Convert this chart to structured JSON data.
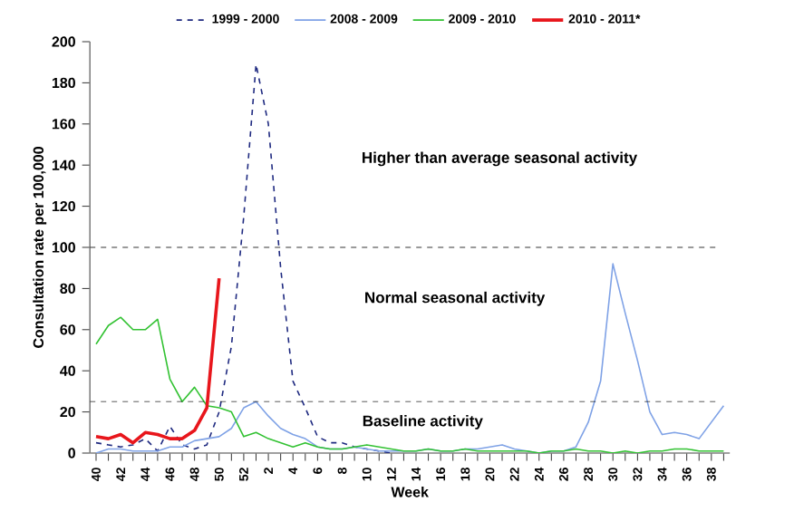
{
  "chart_data": {
    "type": "line",
    "xlabel": "Week",
    "ylabel": "Consultation rate per 100,000",
    "categories": [
      "40",
      null,
      "42",
      null,
      "44",
      null,
      "46",
      null,
      "48",
      null,
      "50",
      null,
      "52",
      null,
      "2",
      null,
      "4",
      null,
      "6",
      null,
      "8",
      null,
      "10",
      null,
      "12",
      null,
      "14",
      null,
      "16",
      null,
      "18",
      null,
      "20",
      null,
      "22",
      null,
      "24",
      null,
      "26",
      null,
      "28",
      null,
      "30",
      null,
      "32",
      null,
      "34",
      null,
      "36",
      null,
      "38",
      null
    ],
    "series": [
      {
        "name": "1999 - 2000",
        "color": "#1f2a80",
        "line_style": "dashed",
        "values": [
          5,
          4,
          3,
          4,
          7,
          1,
          13,
          4,
          2,
          4,
          20,
          52,
          115,
          189,
          160,
          90,
          35,
          22,
          8,
          5,
          5,
          3,
          2,
          1,
          0,
          null,
          null,
          null,
          null,
          null,
          null,
          null,
          null,
          null,
          null,
          null,
          null,
          null,
          null,
          null,
          null,
          null,
          null,
          null,
          null,
          null,
          null,
          null,
          null,
          null,
          null,
          null
        ]
      },
      {
        "name": "2008 - 2009",
        "color": "#7fa2e6",
        "line_style": "solid",
        "values": [
          0,
          2,
          2,
          1,
          1,
          1,
          3,
          3,
          6,
          7,
          8,
          12,
          22,
          25,
          18,
          12,
          9,
          7,
          3,
          2,
          2,
          3,
          2,
          1,
          1,
          1,
          1,
          2,
          1,
          1,
          2,
          2,
          3,
          4,
          2,
          1,
          0,
          1,
          1,
          3,
          15,
          35,
          92,
          68,
          45,
          20,
          9,
          10,
          9,
          7,
          15,
          23
        ]
      },
      {
        "name": "2009 - 2010",
        "color": "#33c233",
        "line_style": "solid",
        "values": [
          53,
          62,
          66,
          60,
          60,
          65,
          36,
          25,
          32,
          23,
          22,
          20,
          8,
          10,
          7,
          5,
          3,
          5,
          3,
          2,
          2,
          3,
          4,
          3,
          2,
          1,
          1,
          2,
          1,
          1,
          2,
          1,
          1,
          1,
          1,
          1,
          0,
          1,
          1,
          2,
          1,
          1,
          0,
          1,
          0,
          1,
          1,
          2,
          2,
          1,
          1,
          1
        ]
      },
      {
        "name": "2010 - 2011*",
        "color": "#e8161c",
        "line_style": "solid",
        "values": [
          8,
          7,
          9,
          5,
          10,
          9,
          7,
          7,
          11,
          22,
          85,
          null,
          null,
          null,
          null,
          null,
          null,
          null,
          null,
          null,
          null,
          null,
          null,
          null,
          null,
          null,
          null,
          null,
          null,
          null,
          null,
          null,
          null,
          null,
          null,
          null,
          null,
          null,
          null,
          null,
          null,
          null,
          null,
          null,
          null,
          null,
          null,
          null,
          null,
          null,
          null,
          null
        ]
      }
    ],
    "ylim": [
      0,
      200
    ],
    "yticks": [
      0,
      20,
      40,
      60,
      80,
      100,
      120,
      140,
      160,
      180,
      200
    ],
    "ref_lines": [
      {
        "axis": "y",
        "value": 100,
        "line_style": "dashed",
        "color": "#000000"
      },
      {
        "axis": "y",
        "value": 25,
        "line_style": "dashed",
        "color": "#000000"
      }
    ],
    "annotations": [
      "Higher than average seasonal activity",
      "Normal seasonal activity",
      "Baseline activity"
    ],
    "legend": "top",
    "grid": false,
    "marker": "none"
  }
}
